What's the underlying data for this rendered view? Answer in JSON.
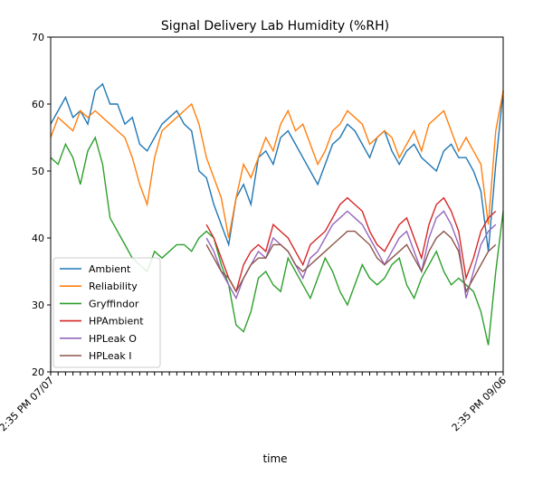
{
  "chart_data": {
    "type": "line",
    "title": "Signal Delivery Lab Humidity (%RH)",
    "xlabel": "time",
    "ylabel": "",
    "ylim": [
      20,
      70
    ],
    "yticks": [
      20,
      30,
      40,
      50,
      60,
      70
    ],
    "x_tick_labels_legible": [
      "2:35 PM 07/07",
      "2:35 PM 09/06"
    ],
    "x_tick_count": 62,
    "grid": false,
    "legend_position": "lower-left",
    "colors": {
      "Ambient": "#1f77b4",
      "Reliability": "#ff7f0e",
      "Gryffindor": "#2ca02c",
      "HPAmbient": "#d62728",
      "HPLeak O": "#9467bd",
      "HPLeak I": "#8c564b"
    },
    "series": [
      {
        "name": "Ambient",
        "start_index": 0,
        "values": [
          57,
          59,
          61,
          58,
          59,
          57,
          62,
          63,
          60,
          60,
          57,
          58,
          54,
          53,
          55,
          57,
          58,
          59,
          57,
          56,
          50,
          49,
          45,
          42,
          39,
          46,
          48,
          45,
          52,
          53,
          51,
          55,
          56,
          54,
          52,
          50,
          48,
          51,
          54,
          55,
          57,
          56,
          54,
          52,
          55,
          56,
          53,
          51,
          53,
          54,
          52,
          51,
          50,
          53,
          54,
          52,
          52,
          50,
          47,
          38,
          51,
          62
        ]
      },
      {
        "name": "Reliability",
        "start_index": 0,
        "values": [
          55,
          58,
          57,
          56,
          59,
          58,
          59,
          58,
          57,
          56,
          55,
          52,
          48,
          45,
          52,
          56,
          57,
          58,
          59,
          60,
          57,
          52,
          49,
          46,
          40,
          46,
          51,
          49,
          52,
          55,
          53,
          57,
          59,
          56,
          57,
          54,
          51,
          53,
          56,
          57,
          59,
          58,
          57,
          54,
          55,
          56,
          55,
          52,
          54,
          56,
          53,
          57,
          58,
          59,
          56,
          53,
          55,
          53,
          51,
          42,
          56,
          62
        ]
      },
      {
        "name": "Gryffindor",
        "start_index": 0,
        "values": [
          52,
          51,
          54,
          52,
          48,
          53,
          55,
          51,
          43,
          41,
          39,
          37,
          36,
          35,
          38,
          37,
          38,
          39,
          39,
          38,
          40,
          41,
          40,
          36,
          33,
          27,
          26,
          29,
          34,
          35,
          33,
          32,
          37,
          35,
          33,
          31,
          34,
          37,
          35,
          32,
          30,
          33,
          36,
          34,
          33,
          34,
          36,
          37,
          33,
          31,
          34,
          36,
          38,
          35,
          33,
          34,
          33,
          32,
          29,
          24,
          35,
          44
        ]
      },
      {
        "name": "HPAmbient",
        "start_index": 21,
        "values": [
          42,
          40,
          37,
          34,
          32,
          36,
          38,
          39,
          38,
          42,
          41,
          40,
          38,
          36,
          39,
          40,
          41,
          43,
          45,
          46,
          45,
          44,
          41,
          39,
          38,
          40,
          42,
          43,
          40,
          37,
          42,
          45,
          46,
          44,
          41,
          34,
          37,
          41,
          43,
          44
        ]
      },
      {
        "name": "HPLeak O",
        "start_index": 21,
        "values": [
          40,
          38,
          35,
          33,
          31,
          34,
          36,
          38,
          37,
          40,
          39,
          38,
          36,
          34,
          37,
          38,
          40,
          42,
          43,
          44,
          43,
          42,
          40,
          38,
          36,
          38,
          40,
          41,
          38,
          35,
          40,
          43,
          44,
          42,
          39,
          31,
          35,
          39,
          41,
          42
        ]
      },
      {
        "name": "HPLeak I",
        "start_index": 21,
        "values": [
          39,
          37,
          35,
          34,
          32,
          34,
          36,
          37,
          37,
          39,
          39,
          38,
          36,
          35,
          36,
          37,
          38,
          39,
          40,
          41,
          41,
          40,
          39,
          37,
          36,
          37,
          38,
          39,
          37,
          35,
          38,
          40,
          41,
          40,
          38,
          32,
          34,
          36,
          38,
          39
        ]
      }
    ]
  }
}
